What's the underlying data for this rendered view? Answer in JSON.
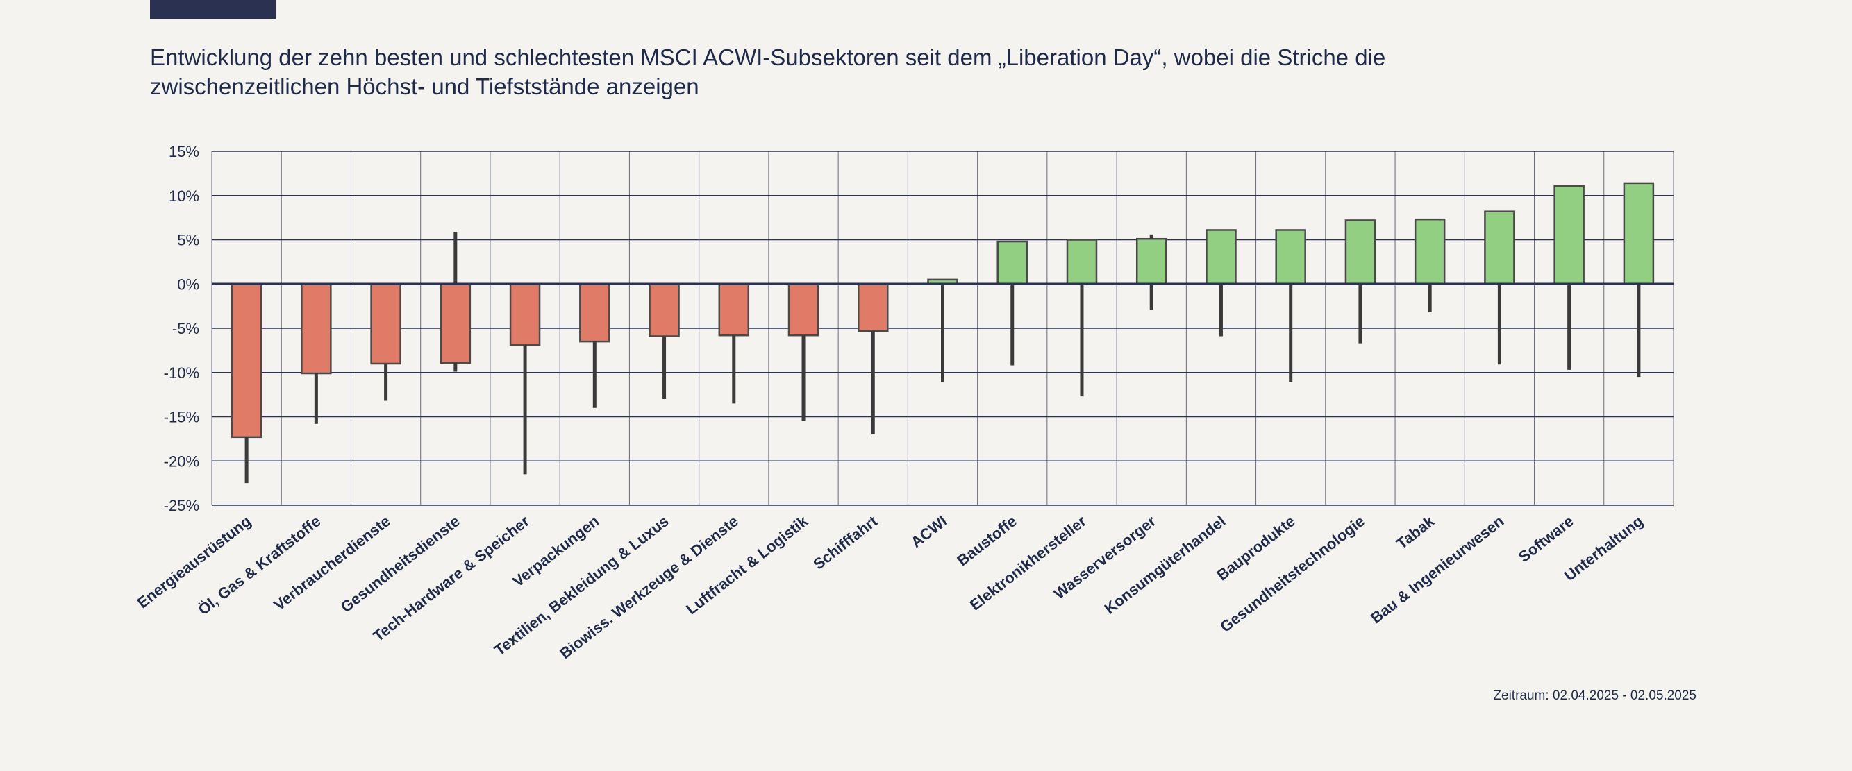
{
  "title": "Entwicklung der zehn besten und schlechtesten MSCI ACWI-Subsektoren seit dem „Liberation Day“, wobei die Striche die\nzwischenzeitlichen Höchst- und Tiefststände anzeigen",
  "footnote": "Zeitraum: 02.04.2025 - 02.05.2025",
  "colors": {
    "negative": "#e07b68",
    "positive": "#92cf82",
    "bar_stroke": "#4a4a4a",
    "whisker": "#3a3a3a",
    "grid": "#2b3150",
    "background": "#f5f3ef"
  },
  "chart_data": {
    "type": "bar",
    "title": "Entwicklung der zehn besten und schlechtesten MSCI ACWI-Subsektoren seit dem „Liberation Day“, wobei die Striche die zwischenzeitlichen Höchst- und Tiefststände anzeigen",
    "xlabel": "",
    "ylabel": "",
    "ylim": [
      -25,
      15
    ],
    "yticks": [
      15,
      10,
      5,
      0,
      -5,
      -10,
      -15,
      -20,
      -25
    ],
    "ytick_labels": [
      "15%",
      "10%",
      "5%",
      "0%",
      "-5%",
      "-10%",
      "-15%",
      "-20%",
      "-25%"
    ],
    "grid": true,
    "categories": [
      "Energieausrüstung",
      "Öl, Gas & Kraftstoffe",
      "Verbraucherdienste",
      "Gesundheitsdienste",
      "Tech-Hardware & Speicher",
      "Verpackungen",
      "Textilien, Bekleidung & Luxus",
      "Biowiss. Werkzeuge & Dienste",
      "Luftfracht & Logistik",
      "Schifffahrt",
      "ACWI",
      "Baustoffe",
      "Elektronikhersteller",
      "Wasserversorger",
      "Konsumgüterhandel",
      "Bauprodukte",
      "Gesundheitstechnologie",
      "Tabak",
      "Bau & Ingenieurwesen",
      "Software",
      "Unterhaltung"
    ],
    "values": [
      -17.3,
      -10.1,
      -9.0,
      -8.9,
      -6.9,
      -6.5,
      -5.9,
      -5.8,
      -5.8,
      -5.3,
      0.5,
      4.8,
      5.0,
      5.1,
      6.1,
      6.1,
      7.2,
      7.3,
      8.2,
      11.1,
      11.4
    ],
    "high": [
      -17.3,
      -10.1,
      -9.0,
      5.9,
      -6.9,
      -6.5,
      -5.9,
      -5.8,
      -5.8,
      -5.3,
      0.5,
      4.8,
      5.0,
      5.6,
      6.1,
      6.1,
      7.2,
      7.3,
      8.2,
      11.1,
      11.4
    ],
    "low": [
      -22.5,
      -15.8,
      -13.2,
      -9.9,
      -21.5,
      -14.0,
      -13.0,
      -13.5,
      -15.5,
      -17.0,
      -11.1,
      -9.2,
      -12.7,
      -2.9,
      -5.9,
      -11.1,
      -6.7,
      -3.2,
      -9.1,
      -9.7,
      -10.5
    ]
  }
}
